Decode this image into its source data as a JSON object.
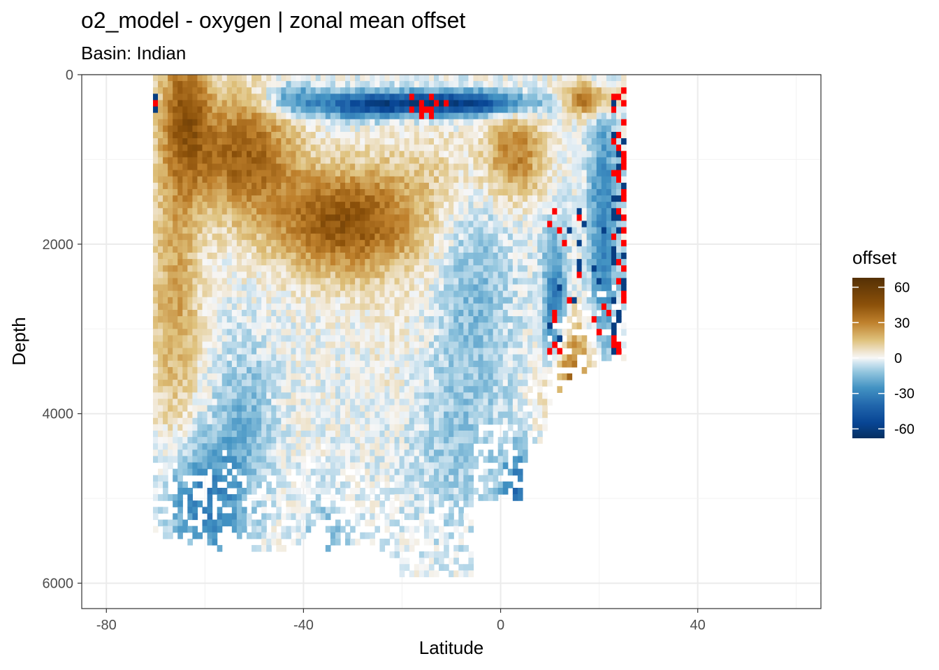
{
  "chart_data": {
    "type": "heatmap",
    "title": "o2_model - oxygen  | zonal mean offset",
    "subtitle": "Basin: Indian",
    "xlabel": "Latitude",
    "ylabel": "Depth",
    "xlim": [
      -85,
      65
    ],
    "ylim": [
      6300,
      0
    ],
    "y_reversed": true,
    "x_ticks": [
      -80,
      -40,
      0,
      40
    ],
    "y_ticks": [
      0,
      2000,
      4000,
      6000
    ],
    "grid": true,
    "legend": {
      "title": "offset",
      "position": "right",
      "labels": [
        "60",
        "30",
        "0",
        "-30",
        "-60"
      ],
      "values": [
        60,
        30,
        0,
        -30,
        -60
      ],
      "range": [
        -68,
        68
      ],
      "colors": [
        "#003c30",
        "#08306b",
        "#2166ac",
        "#4393c3",
        "#92c5de",
        "#d1e5f0",
        "#f7f7f7",
        "#f6e8c3",
        "#dfc27d",
        "#bf812d",
        "#8c510a",
        "#543005"
      ]
    },
    "out_of_range_color": "#ff0000",
    "data_extent": {
      "lat_min": -70,
      "lat_max": 25,
      "depth_max": 6200
    },
    "grid_resolution": {
      "lat_step": 1,
      "depth_step": 75
    },
    "features": [
      {
        "description": "positive offset",
        "lat": -32,
        "depth": 1700,
        "value": 45
      },
      {
        "description": "positive offset",
        "lat": -52,
        "depth": 800,
        "value": 42
      },
      {
        "description": "positive offset",
        "lat": -64,
        "depth": 300,
        "value": 40
      },
      {
        "description": "positive offset",
        "lat": 3,
        "depth": 900,
        "value": 30
      },
      {
        "description": "negative offset",
        "lat": -10,
        "depth": 300,
        "value": -60
      },
      {
        "description": "negative offset",
        "lat": -25,
        "depth": 300,
        "value": -42
      },
      {
        "description": "negative offset",
        "lat": -60,
        "depth": 5000,
        "value": -30
      },
      {
        "description": "negative offset",
        "lat": 4,
        "depth": 4900,
        "value": -35
      },
      {
        "description": "positive offset",
        "lat": 14,
        "depth": 3700,
        "value": 40
      },
      {
        "description": "positive offset",
        "lat": 20,
        "depth": 200,
        "value": 55
      }
    ]
  }
}
